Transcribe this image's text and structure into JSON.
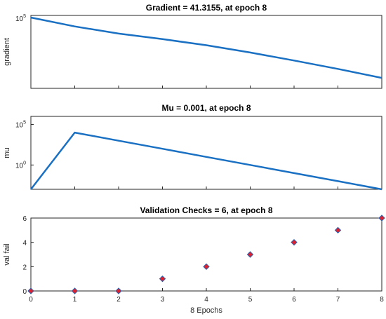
{
  "colors": {
    "line": "#1a70c2",
    "marker_fill": "#e0202a",
    "marker_edge": "#2b5fb0",
    "axes": "#262626"
  },
  "chart_data": [
    {
      "type": "line",
      "title": "Gradient = 41.3155, at epoch 8",
      "xlabel": "",
      "ylabel": "gradient",
      "yscale": "log",
      "xlim": [
        0,
        8
      ],
      "ylim": [
        10,
        200000
      ],
      "y_ticks": [
        {
          "value": 100000,
          "base": "10",
          "exp": "5"
        }
      ],
      "x_tick_labels_shown": false,
      "series": [
        {
          "x": [
            0,
            1,
            2,
            3,
            4,
            5,
            6,
            7,
            8
          ],
          "y": [
            150000,
            45000,
            17000,
            8000,
            3500,
            1300,
            440,
            140,
            41.3155
          ]
        }
      ]
    },
    {
      "type": "line",
      "title": "Mu = 0.001, at epoch 8",
      "xlabel": "",
      "ylabel": "mu",
      "yscale": "log",
      "xlim": [
        0,
        8
      ],
      "ylim": [
        0.001,
        1000000
      ],
      "y_ticks": [
        {
          "value": 100000,
          "base": "10",
          "exp": "5"
        },
        {
          "value": 1,
          "base": "10",
          "exp": "0"
        }
      ],
      "x_tick_labels_shown": false,
      "series": [
        {
          "x": [
            0,
            1,
            2,
            3,
            4,
            5,
            6,
            7,
            8
          ],
          "y": [
            0.001,
            10000,
            1000,
            100,
            10,
            1,
            0.1,
            0.01,
            0.001
          ]
        }
      ]
    },
    {
      "type": "scatter",
      "title": "Validation Checks = 6, at epoch 8",
      "xlabel": "8 Epochs",
      "ylabel": "val fail",
      "xlim": [
        0,
        8
      ],
      "ylim": [
        0,
        6
      ],
      "x_ticks": [
        0,
        1,
        2,
        3,
        4,
        5,
        6,
        7,
        8
      ],
      "y_ticks": [
        0,
        2,
        4,
        6
      ],
      "series": [
        {
          "x": [
            0,
            1,
            2,
            3,
            4,
            5,
            6,
            7,
            8
          ],
          "y": [
            0,
            0,
            0,
            1,
            2,
            3,
            4,
            5,
            6
          ]
        }
      ]
    }
  ]
}
